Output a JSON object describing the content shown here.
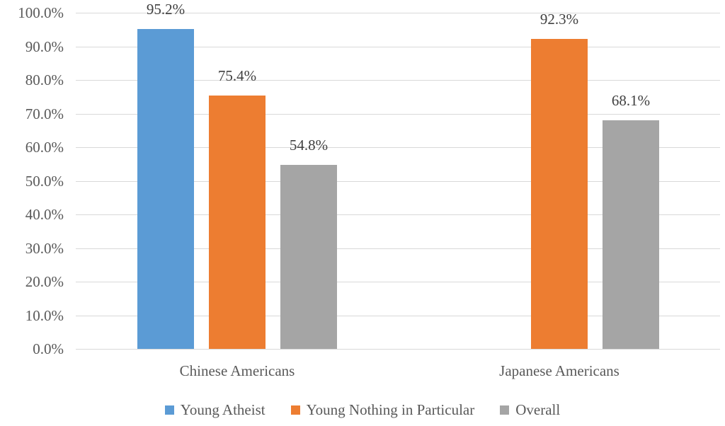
{
  "chart": {
    "background": "#ffffff",
    "axis_text_color": "#595959",
    "data_label_color": "#404040",
    "gridline_color": "#D9D9D9",
    "axis_line_color": "#D9D9D9"
  },
  "chart_data": {
    "type": "bar",
    "title": "",
    "xlabel": "",
    "ylabel": "",
    "categories": [
      "Chinese Americans",
      "Japanese Americans"
    ],
    "series": [
      {
        "name": "Young Atheist",
        "color": "#5B9BD5",
        "values": [
          95.2,
          null
        ],
        "labels": [
          "95.2%",
          null
        ]
      },
      {
        "name": "Young Nothing in Particular",
        "color": "#ED7D31",
        "values": [
          75.4,
          92.3
        ],
        "labels": [
          "75.4%",
          "92.3%"
        ]
      },
      {
        "name": "Overall",
        "color": "#A5A5A5",
        "values": [
          54.8,
          68.1
        ],
        "labels": [
          "54.8%",
          "68.1%"
        ]
      }
    ],
    "ylim": [
      0,
      100
    ],
    "ytick_step": 10,
    "yticks": [
      "100.0%",
      "90.0%",
      "80.0%",
      "70.0%",
      "60.0%",
      "50.0%",
      "40.0%",
      "30.0%",
      "20.0%",
      "10.0%",
      "0.0%"
    ],
    "grid": true,
    "legend_position": "bottom"
  }
}
